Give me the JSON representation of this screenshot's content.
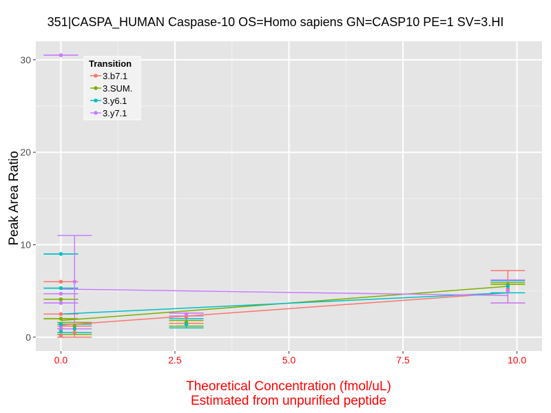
{
  "chart_data": {
    "type": "line",
    "title": "351|CASPA_HUMAN Caspase-10 OS=Homo sapiens GN=CASP10 PE=1 SV=3.HI",
    "xlabel_line1": "Theoretical Concentration (fmol/uL)",
    "xlabel_line2": "Estimated from unpurified peptide",
    "ylabel": "Peak Area Ratio",
    "xlim": [
      -0.55,
      10.55
    ],
    "ylim": [
      -1.5,
      32
    ],
    "x_ticks": [
      "0.0",
      "2.5",
      "5.0",
      "7.5",
      "10.0"
    ],
    "x_tick_values": [
      0,
      2.5,
      5.0,
      7.5,
      10.0
    ],
    "y_ticks": [
      "0",
      "10",
      "20",
      "30"
    ],
    "y_tick_values": [
      0,
      10,
      20,
      30
    ],
    "x_tick_color": "#ff0000",
    "xlabel_color": "#ff0000",
    "panel_background": "#e5e5e5",
    "grid": true,
    "legend": {
      "title": "Transition",
      "position": "top-left"
    },
    "series": [
      {
        "name": "3.b7.1",
        "color": "#f8766d",
        "points": [
          {
            "x": 0,
            "y": 6.0
          },
          {
            "x": 0,
            "y": 2.5
          },
          {
            "x": 0,
            "y": 1.2
          },
          {
            "x": 0,
            "y": 0.2
          },
          {
            "x": 0.3,
            "y": 0.5
          },
          {
            "x": 2.75,
            "y": 2.2
          },
          {
            "x": 9.8,
            "y": 5.2
          }
        ],
        "errorbars": [
          {
            "x": 0,
            "y": 6.0,
            "lo": 6.0,
            "hi": 6.0
          },
          {
            "x": 0,
            "y": 2.5,
            "lo": 2.5,
            "hi": 2.5
          },
          {
            "x": 0.3,
            "y": 0.5,
            "lo": 0.0,
            "hi": 1.2
          },
          {
            "x": 2.75,
            "y": 2.2,
            "lo": 1.5,
            "hi": 2.6
          },
          {
            "x": 9.8,
            "y": 5.2,
            "lo": 3.7,
            "hi": 7.2
          }
        ],
        "trend": [
          [
            0,
            1.3
          ],
          [
            9.8,
            4.8
          ]
        ]
      },
      {
        "name": "3.SUM.",
        "color": "#7cae00",
        "points": [
          {
            "x": 0,
            "y": 4.1
          },
          {
            "x": 0,
            "y": 2.0
          },
          {
            "x": 0,
            "y": 0.9
          },
          {
            "x": 0.3,
            "y": 1.2
          },
          {
            "x": 2.75,
            "y": 1.6
          },
          {
            "x": 9.8,
            "y": 5.7
          }
        ],
        "errorbars": [
          {
            "x": 0,
            "y": 4.1,
            "lo": 4.1,
            "hi": 4.1
          },
          {
            "x": 0,
            "y": 2.0,
            "lo": 2.0,
            "hi": 2.0
          },
          {
            "x": 0.3,
            "y": 1.2,
            "lo": 0.3,
            "hi": 1.6
          },
          {
            "x": 2.75,
            "y": 1.6,
            "lo": 1.2,
            "hi": 1.8
          },
          {
            "x": 9.8,
            "y": 5.7,
            "lo": 5.7,
            "hi": 5.9
          }
        ],
        "trend": [
          [
            0,
            1.8
          ],
          [
            9.8,
            5.5
          ]
        ]
      },
      {
        "name": "3.y6.1",
        "color": "#00bfc4",
        "points": [
          {
            "x": 0,
            "y": 9.0
          },
          {
            "x": 0,
            "y": 5.3
          },
          {
            "x": 0,
            "y": 1.4
          },
          {
            "x": 0,
            "y": 0.6
          },
          {
            "x": 0.3,
            "y": 0.9
          },
          {
            "x": 2.75,
            "y": 1.4
          },
          {
            "x": 9.8,
            "y": 5.5
          }
        ],
        "errorbars": [
          {
            "x": 0,
            "y": 9.0,
            "lo": 9.0,
            "hi": 9.0
          },
          {
            "x": 0,
            "y": 5.3,
            "lo": 5.3,
            "hi": 5.3
          },
          {
            "x": 0.3,
            "y": 0.9,
            "lo": 0.5,
            "hi": 1.4
          },
          {
            "x": 2.75,
            "y": 1.4,
            "lo": 1.0,
            "hi": 2.0
          },
          {
            "x": 9.8,
            "y": 5.5,
            "lo": 4.8,
            "hi": 6.1
          }
        ],
        "trend": [
          [
            0,
            2.5
          ],
          [
            9.8,
            4.8
          ]
        ]
      },
      {
        "name": "3.y7.1",
        "color": "#c77cff",
        "points": [
          {
            "x": 0,
            "y": 30.5
          },
          {
            "x": 0,
            "y": 4.7
          },
          {
            "x": 0,
            "y": 3.7
          },
          {
            "x": 0,
            "y": 1.0
          },
          {
            "x": 0.3,
            "y": 6.0
          },
          {
            "x": 2.75,
            "y": 2.5
          },
          {
            "x": 9.8,
            "y": 5.0
          }
        ],
        "errorbars": [
          {
            "x": 0,
            "y": 30.5,
            "lo": 30.5,
            "hi": 30.5
          },
          {
            "x": 0,
            "y": 4.7,
            "lo": 4.7,
            "hi": 4.7
          },
          {
            "x": 0,
            "y": 3.7,
            "lo": 3.7,
            "hi": 3.7
          },
          {
            "x": 0.3,
            "y": 6.0,
            "lo": 0.9,
            "hi": 11.0
          },
          {
            "x": 2.75,
            "y": 2.5,
            "lo": 2.3,
            "hi": 2.6
          },
          {
            "x": 9.8,
            "y": 5.0,
            "lo": 3.7,
            "hi": 6.2
          }
        ],
        "trend": [
          [
            0,
            5.2
          ],
          [
            9.8,
            4.5
          ]
        ]
      }
    ]
  }
}
